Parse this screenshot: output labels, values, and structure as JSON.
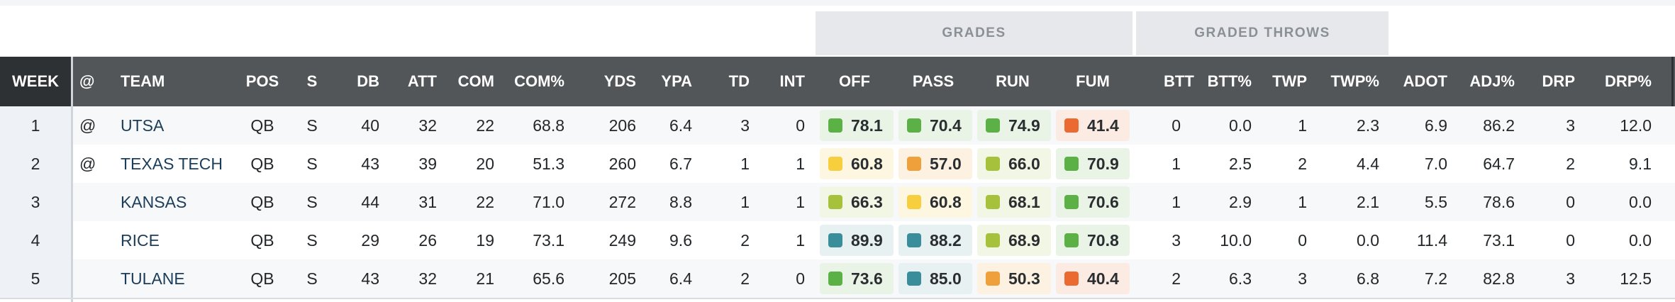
{
  "group_headers": {
    "grades": "GRADES",
    "graded_throws": "GRADED THROWS"
  },
  "columns": {
    "week": "WEEK",
    "at": "@",
    "team": "TEAM",
    "pos": "POS",
    "s": "S",
    "db": "DB",
    "att": "ATT",
    "com": "COM",
    "com_pct": "COM%",
    "yds": "YDS",
    "ypa": "YPA",
    "td": "TD",
    "int": "INT",
    "off": "OFF",
    "pass": "PASS",
    "run": "RUN",
    "fum": "FUM",
    "btt": "BTT",
    "btt_pct": "BTT%",
    "twp": "TWP",
    "twp_pct": "TWP%",
    "adot": "ADOT",
    "adj_pct": "ADJ%",
    "drp": "DRP",
    "drp_pct": "DRP%"
  },
  "grade_colors": {
    "elite_teal": "#3a8e9c",
    "high_green": "#5bb046",
    "good_lime": "#a6c23c",
    "avg_yellow": "#f7cf3e",
    "below_orange": "#f0a03a",
    "poor_red": "#ea6a32"
  },
  "rows": [
    {
      "week": "1",
      "at": "@",
      "team": "UTSA",
      "pos": "QB",
      "s": "S",
      "db": "40",
      "att": "32",
      "com": "22",
      "com_pct": "68.8",
      "yds": "206",
      "ypa": "6.4",
      "td": "3",
      "int": "0",
      "off": "78.1",
      "pass": "70.4",
      "run": "74.9",
      "fum": "41.4",
      "btt": "0",
      "btt_pct": "0.0",
      "twp": "1",
      "twp_pct": "2.3",
      "adot": "6.9",
      "adj_pct": "86.2",
      "drp": "3",
      "drp_pct": "12.0"
    },
    {
      "week": "2",
      "at": "@",
      "team": "TEXAS TECH",
      "pos": "QB",
      "s": "S",
      "db": "43",
      "att": "39",
      "com": "20",
      "com_pct": "51.3",
      "yds": "260",
      "ypa": "6.7",
      "td": "1",
      "int": "1",
      "off": "60.8",
      "pass": "57.0",
      "run": "66.0",
      "fum": "70.9",
      "btt": "1",
      "btt_pct": "2.5",
      "twp": "2",
      "twp_pct": "4.4",
      "adot": "7.0",
      "adj_pct": "64.7",
      "drp": "2",
      "drp_pct": "9.1"
    },
    {
      "week": "3",
      "at": "",
      "team": "KANSAS",
      "pos": "QB",
      "s": "S",
      "db": "44",
      "att": "31",
      "com": "22",
      "com_pct": "71.0",
      "yds": "272",
      "ypa": "8.8",
      "td": "1",
      "int": "1",
      "off": "66.3",
      "pass": "60.8",
      "run": "68.1",
      "fum": "70.6",
      "btt": "1",
      "btt_pct": "2.9",
      "twp": "1",
      "twp_pct": "2.1",
      "adot": "5.5",
      "adj_pct": "78.6",
      "drp": "0",
      "drp_pct": "0.0"
    },
    {
      "week": "4",
      "at": "",
      "team": "RICE",
      "pos": "QB",
      "s": "S",
      "db": "29",
      "att": "26",
      "com": "19",
      "com_pct": "73.1",
      "yds": "249",
      "ypa": "9.6",
      "td": "2",
      "int": "1",
      "off": "89.9",
      "pass": "88.2",
      "run": "68.9",
      "fum": "70.8",
      "btt": "3",
      "btt_pct": "10.0",
      "twp": "0",
      "twp_pct": "0.0",
      "adot": "11.4",
      "adj_pct": "73.1",
      "drp": "0",
      "drp_pct": "0.0"
    },
    {
      "week": "5",
      "at": "",
      "team": "TULANE",
      "pos": "QB",
      "s": "S",
      "db": "43",
      "att": "32",
      "com": "21",
      "com_pct": "65.6",
      "yds": "205",
      "ypa": "6.4",
      "td": "2",
      "int": "0",
      "off": "73.6",
      "pass": "85.0",
      "run": "50.3",
      "fum": "40.4",
      "btt": "2",
      "btt_pct": "6.3",
      "twp": "3",
      "twp_pct": "6.8",
      "adot": "7.2",
      "adj_pct": "82.8",
      "drp": "3",
      "drp_pct": "12.5"
    }
  ]
}
